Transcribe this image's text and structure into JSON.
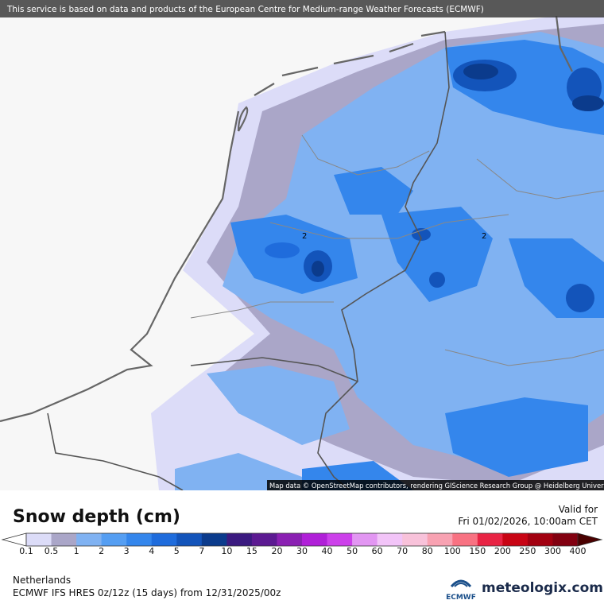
{
  "header": {
    "notice": "This service is based on data and products of the European Centre for Medium-range Weather Forecasts (ECMWF)"
  },
  "map": {
    "attribution": "Map data © OpenStreetMap contributors, rendering GIScience Research Group @ Heidelberg University",
    "contour_labels": [
      "2",
      "2"
    ]
  },
  "legend": {
    "title": "Snow depth (cm)",
    "ticks": [
      "0.1",
      "0.5",
      "1",
      "2",
      "3",
      "4",
      "5",
      "7",
      "10",
      "15",
      "20",
      "30",
      "40",
      "50",
      "60",
      "70",
      "80",
      "100",
      "150",
      "200",
      "250",
      "300",
      "400"
    ],
    "colors": [
      "#dcdcf8",
      "#aaa6c8",
      "#80b2f2",
      "#559ef2",
      "#3486ec",
      "#1f6cdc",
      "#1354ba",
      "#0b3b8c",
      "#3b1a80",
      "#5c1a92",
      "#8a20b2",
      "#b020d8",
      "#cc40ea",
      "#e296f2",
      "#f2c4f8",
      "#f8c2da",
      "#f8a2b2",
      "#f87282",
      "#e82444",
      "#c80414",
      "#a20010",
      "#820010"
    ],
    "below_color": "#ffffff",
    "above_color": "#4a0000"
  },
  "valid": {
    "label": "Valid for",
    "time": "Fri 01/02/2026, 10:00am CET"
  },
  "footer": {
    "region": "Netherlands",
    "model": "ECMWF IFS HRES 0z/12z (15 days) from  12/31/2025/00z",
    "ecmwf_logo": "ECMWF",
    "brand": "meteologix.com"
  }
}
